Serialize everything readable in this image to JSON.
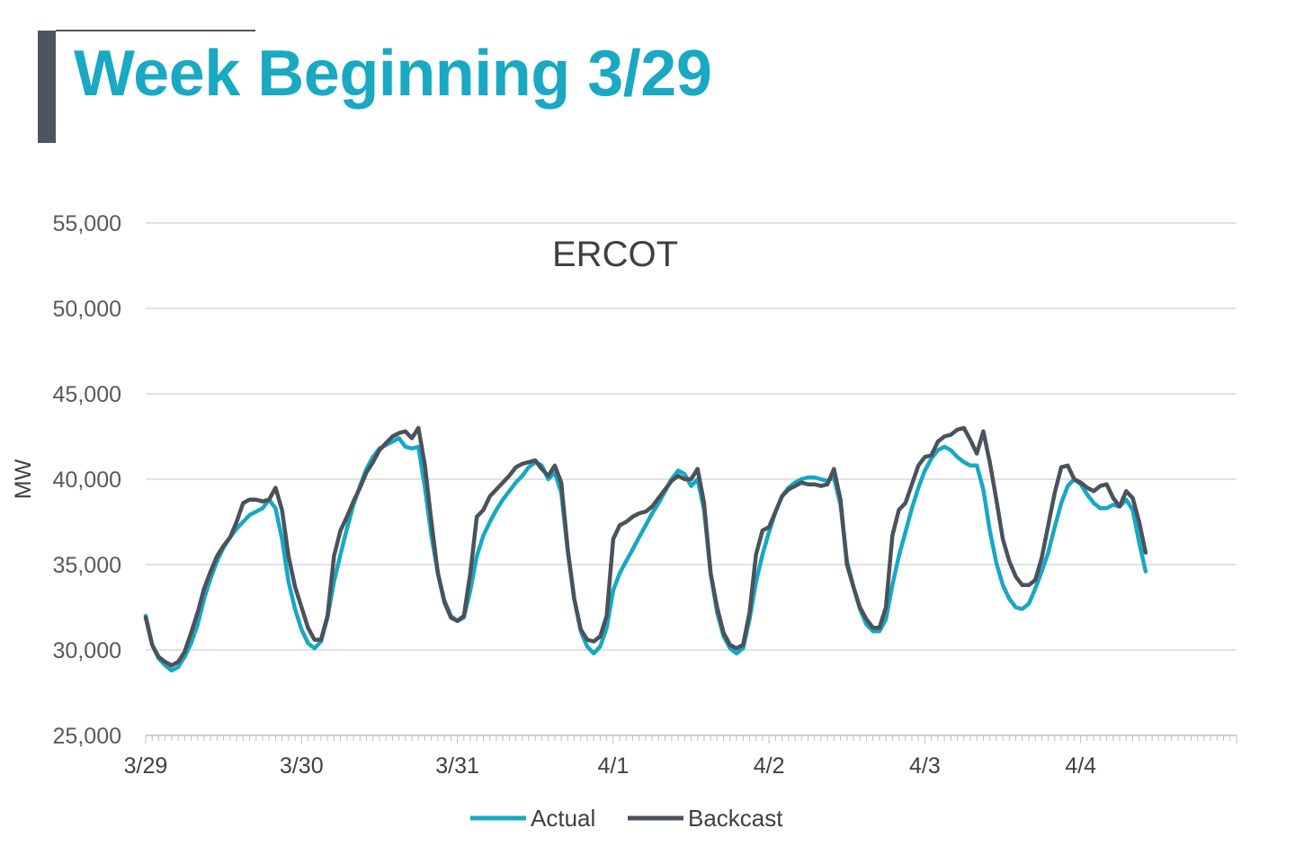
{
  "page": {
    "title": "Week Beginning 3/29"
  },
  "colors": {
    "accent": "#19a9c3",
    "actual": "#17a8c4",
    "backcast": "#4a525c",
    "grid": "#d9d9d9"
  },
  "chart_data": {
    "type": "line",
    "title": "ERCOT",
    "xlabel": "",
    "ylabel": "MW",
    "ylim": [
      25000,
      55000
    ],
    "yticks": [
      25000,
      30000,
      35000,
      40000,
      45000,
      50000,
      55000
    ],
    "ytick_labels": [
      "25,000",
      "30,000",
      "35,000",
      "40,000",
      "45,000",
      "50,000",
      "55,000"
    ],
    "x_unit": "hours from 3/29 00:00",
    "x_range": [
      0,
      168
    ],
    "x_tick_positions": [
      0,
      24,
      48,
      72,
      96,
      120,
      144
    ],
    "x_tick_labels": [
      "3/29",
      "3/30",
      "3/31",
      "4/1",
      "4/2",
      "4/3",
      "4/4"
    ],
    "grid": true,
    "legend": "bottom-center",
    "series": [
      {
        "name": "Actual",
        "color": "#17a8c4",
        "points": [
          [
            0,
            32000
          ],
          [
            1,
            30300
          ],
          [
            2,
            29500
          ],
          [
            3,
            29100
          ],
          [
            4,
            28800
          ],
          [
            5,
            29000
          ],
          [
            6,
            29600
          ],
          [
            7,
            30400
          ],
          [
            8,
            31500
          ],
          [
            9,
            33000
          ],
          [
            10,
            34200
          ],
          [
            11,
            35200
          ],
          [
            12,
            36000
          ],
          [
            13,
            36600
          ],
          [
            14,
            37100
          ],
          [
            15,
            37500
          ],
          [
            16,
            37900
          ],
          [
            17,
            38100
          ],
          [
            18,
            38300
          ],
          [
            19,
            38800
          ],
          [
            20,
            38300
          ],
          [
            21,
            36500
          ],
          [
            22,
            34000
          ],
          [
            23,
            32400
          ],
          [
            24,
            31200
          ],
          [
            25,
            30400
          ],
          [
            26,
            30100
          ],
          [
            27,
            30500
          ],
          [
            28,
            31900
          ],
          [
            29,
            34000
          ],
          [
            30,
            35600
          ],
          [
            31,
            37100
          ],
          [
            32,
            38500
          ],
          [
            33,
            39600
          ],
          [
            34,
            40600
          ],
          [
            35,
            41300
          ],
          [
            36,
            41800
          ],
          [
            37,
            42000
          ],
          [
            38,
            42200
          ],
          [
            39,
            42400
          ],
          [
            40,
            41900
          ],
          [
            41,
            41800
          ],
          [
            42,
            41900
          ],
          [
            43,
            39500
          ],
          [
            44,
            36700
          ],
          [
            45,
            34500
          ],
          [
            46,
            32900
          ],
          [
            47,
            32000
          ],
          [
            48,
            31700
          ],
          [
            49,
            31900
          ],
          [
            50,
            33500
          ],
          [
            51,
            35500
          ],
          [
            52,
            36700
          ],
          [
            53,
            37500
          ],
          [
            54,
            38200
          ],
          [
            55,
            38800
          ],
          [
            56,
            39300
          ],
          [
            57,
            39800
          ],
          [
            58,
            40200
          ],
          [
            59,
            40700
          ],
          [
            60,
            41000
          ],
          [
            61,
            40800
          ],
          [
            62,
            40000
          ],
          [
            63,
            40400
          ],
          [
            64,
            39200
          ],
          [
            65,
            35800
          ],
          [
            66,
            33000
          ],
          [
            67,
            31100
          ],
          [
            68,
            30200
          ],
          [
            69,
            29800
          ],
          [
            70,
            30200
          ],
          [
            71,
            31300
          ],
          [
            72,
            33500
          ],
          [
            73,
            34500
          ],
          [
            74,
            35200
          ],
          [
            75,
            35900
          ],
          [
            76,
            36600
          ],
          [
            77,
            37300
          ],
          [
            78,
            38000
          ],
          [
            79,
            38600
          ],
          [
            80,
            39300
          ],
          [
            81,
            40000
          ],
          [
            82,
            40500
          ],
          [
            83,
            40300
          ],
          [
            84,
            39600
          ],
          [
            85,
            40000
          ],
          [
            86,
            38200
          ],
          [
            87,
            34500
          ],
          [
            88,
            32200
          ],
          [
            89,
            30800
          ],
          [
            90,
            30100
          ],
          [
            91,
            29800
          ],
          [
            92,
            30100
          ],
          [
            93,
            31800
          ],
          [
            94,
            34000
          ],
          [
            95,
            35600
          ],
          [
            96,
            36900
          ],
          [
            97,
            38100
          ],
          [
            98,
            39000
          ],
          [
            99,
            39500
          ],
          [
            100,
            39800
          ],
          [
            101,
            40000
          ],
          [
            102,
            40100
          ],
          [
            103,
            40100
          ],
          [
            104,
            40000
          ],
          [
            105,
            39900
          ],
          [
            106,
            40100
          ],
          [
            107,
            38500
          ],
          [
            108,
            35200
          ],
          [
            109,
            33700
          ],
          [
            110,
            32400
          ],
          [
            111,
            31500
          ],
          [
            112,
            31100
          ],
          [
            113,
            31100
          ],
          [
            114,
            31800
          ],
          [
            115,
            33800
          ],
          [
            116,
            35500
          ],
          [
            117,
            36900
          ],
          [
            118,
            38300
          ],
          [
            119,
            39500
          ],
          [
            120,
            40500
          ],
          [
            121,
            41200
          ],
          [
            122,
            41700
          ],
          [
            123,
            41900
          ],
          [
            124,
            41700
          ],
          [
            125,
            41300
          ],
          [
            126,
            41000
          ],
          [
            127,
            40800
          ],
          [
            128,
            40800
          ],
          [
            129,
            39400
          ],
          [
            130,
            37000
          ],
          [
            131,
            35100
          ],
          [
            132,
            33800
          ],
          [
            133,
            33000
          ],
          [
            134,
            32500
          ],
          [
            135,
            32400
          ],
          [
            136,
            32700
          ],
          [
            137,
            33600
          ],
          [
            138,
            34600
          ],
          [
            139,
            35700
          ],
          [
            140,
            37200
          ],
          [
            141,
            38600
          ],
          [
            142,
            39600
          ],
          [
            143,
            40000
          ],
          [
            144,
            39700
          ],
          [
            145,
            39100
          ],
          [
            146,
            38600
          ],
          [
            147,
            38300
          ],
          [
            148,
            38300
          ],
          [
            149,
            38500
          ],
          [
            150,
            38400
          ],
          [
            151,
            38800
          ],
          [
            152,
            38200
          ],
          [
            153,
            36300
          ],
          [
            154,
            34600
          ]
        ]
      },
      {
        "name": "Backcast",
        "color": "#4a525c",
        "points": [
          [
            0,
            31900
          ],
          [
            1,
            30300
          ],
          [
            2,
            29600
          ],
          [
            3,
            29300
          ],
          [
            4,
            29100
          ],
          [
            5,
            29300
          ],
          [
            6,
            29900
          ],
          [
            7,
            31000
          ],
          [
            8,
            32200
          ],
          [
            9,
            33600
          ],
          [
            10,
            34600
          ],
          [
            11,
            35500
          ],
          [
            12,
            36100
          ],
          [
            13,
            36600
          ],
          [
            14,
            37500
          ],
          [
            15,
            38600
          ],
          [
            16,
            38800
          ],
          [
            17,
            38800
          ],
          [
            18,
            38700
          ],
          [
            19,
            38800
          ],
          [
            20,
            39500
          ],
          [
            21,
            38200
          ],
          [
            22,
            35500
          ],
          [
            23,
            33700
          ],
          [
            24,
            32500
          ],
          [
            25,
            31300
          ],
          [
            26,
            30600
          ],
          [
            27,
            30600
          ],
          [
            28,
            32000
          ],
          [
            29,
            35500
          ],
          [
            30,
            37000
          ],
          [
            31,
            37800
          ],
          [
            32,
            38700
          ],
          [
            33,
            39500
          ],
          [
            34,
            40400
          ],
          [
            35,
            41000
          ],
          [
            36,
            41700
          ],
          [
            37,
            42100
          ],
          [
            38,
            42500
          ],
          [
            39,
            42700
          ],
          [
            40,
            42800
          ],
          [
            41,
            42400
          ],
          [
            42,
            43000
          ],
          [
            43,
            40800
          ],
          [
            44,
            37500
          ],
          [
            45,
            34500
          ],
          [
            46,
            32800
          ],
          [
            47,
            31900
          ],
          [
            48,
            31700
          ],
          [
            49,
            32000
          ],
          [
            50,
            34500
          ],
          [
            51,
            37800
          ],
          [
            52,
            38200
          ],
          [
            53,
            39000
          ],
          [
            54,
            39400
          ],
          [
            55,
            39800
          ],
          [
            56,
            40200
          ],
          [
            57,
            40700
          ],
          [
            58,
            40900
          ],
          [
            59,
            41000
          ],
          [
            60,
            41100
          ],
          [
            61,
            40600
          ],
          [
            62,
            40200
          ],
          [
            63,
            40800
          ],
          [
            64,
            39800
          ],
          [
            65,
            35900
          ],
          [
            66,
            33000
          ],
          [
            67,
            31200
          ],
          [
            68,
            30600
          ],
          [
            69,
            30500
          ],
          [
            70,
            30800
          ],
          [
            71,
            32000
          ],
          [
            72,
            36500
          ],
          [
            73,
            37300
          ],
          [
            74,
            37500
          ],
          [
            75,
            37800
          ],
          [
            76,
            38000
          ],
          [
            77,
            38100
          ],
          [
            78,
            38400
          ],
          [
            79,
            38900
          ],
          [
            80,
            39400
          ],
          [
            81,
            39900
          ],
          [
            82,
            40200
          ],
          [
            83,
            40000
          ],
          [
            84,
            40000
          ],
          [
            85,
            40600
          ],
          [
            86,
            38600
          ],
          [
            87,
            34500
          ],
          [
            88,
            32500
          ],
          [
            89,
            31000
          ],
          [
            90,
            30300
          ],
          [
            91,
            30100
          ],
          [
            92,
            30300
          ],
          [
            93,
            32200
          ],
          [
            94,
            35600
          ],
          [
            95,
            37000
          ],
          [
            96,
            37200
          ],
          [
            97,
            38100
          ],
          [
            98,
            39000
          ],
          [
            99,
            39400
          ],
          [
            100,
            39600
          ],
          [
            101,
            39800
          ],
          [
            102,
            39700
          ],
          [
            103,
            39700
          ],
          [
            104,
            39600
          ],
          [
            105,
            39700
          ],
          [
            106,
            40600
          ],
          [
            107,
            38800
          ],
          [
            108,
            35000
          ],
          [
            109,
            33700
          ],
          [
            110,
            32500
          ],
          [
            111,
            31800
          ],
          [
            112,
            31300
          ],
          [
            113,
            31300
          ],
          [
            114,
            32500
          ],
          [
            115,
            36700
          ],
          [
            116,
            38200
          ],
          [
            117,
            38600
          ],
          [
            118,
            39700
          ],
          [
            119,
            40800
          ],
          [
            120,
            41300
          ],
          [
            121,
            41400
          ],
          [
            122,
            42200
          ],
          [
            123,
            42500
          ],
          [
            124,
            42600
          ],
          [
            125,
            42900
          ],
          [
            126,
            43000
          ],
          [
            127,
            42300
          ],
          [
            128,
            41500
          ],
          [
            129,
            42800
          ],
          [
            130,
            41000
          ],
          [
            131,
            38800
          ],
          [
            132,
            36500
          ],
          [
            133,
            35200
          ],
          [
            134,
            34300
          ],
          [
            135,
            33800
          ],
          [
            136,
            33800
          ],
          [
            137,
            34100
          ],
          [
            138,
            35400
          ],
          [
            139,
            37300
          ],
          [
            140,
            39200
          ],
          [
            141,
            40700
          ],
          [
            142,
            40800
          ],
          [
            143,
            40000
          ],
          [
            144,
            39800
          ],
          [
            145,
            39500
          ],
          [
            146,
            39300
          ],
          [
            147,
            39600
          ],
          [
            148,
            39700
          ],
          [
            149,
            38900
          ],
          [
            150,
            38400
          ],
          [
            151,
            39300
          ],
          [
            152,
            38900
          ],
          [
            153,
            37500
          ],
          [
            154,
            35700
          ]
        ]
      }
    ]
  }
}
